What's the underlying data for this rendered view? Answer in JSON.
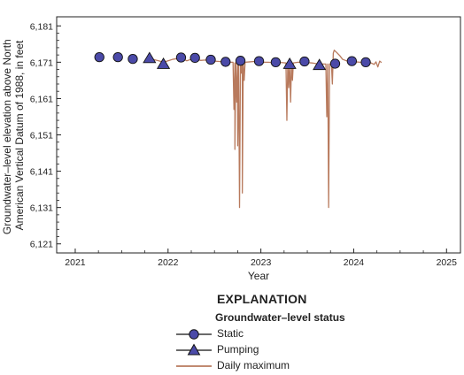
{
  "chart_data": {
    "type": "line",
    "xlabel": "Year",
    "ylabel_lines": [
      "Groundwater–level elevation above North",
      "American Vertical Datum of 1988, in feet"
    ],
    "xlim": [
      2020.8,
      2025.15
    ],
    "ylim": [
      6118.5,
      6183.5
    ],
    "x_ticks": [
      2021,
      2022,
      2023,
      2024,
      2025
    ],
    "x_tick_labels": [
      "2021",
      "2022",
      "2023",
      "2024",
      "2025"
    ],
    "y_ticks": [
      6121,
      6131,
      6141,
      6151,
      6161,
      6171,
      6181
    ],
    "y_tick_labels": [
      "6,121",
      "6,131",
      "6,141",
      "6,151",
      "6,161",
      "6,171",
      "6,181"
    ],
    "grid": false,
    "series": [
      {
        "name": "Static",
        "type": "scatter",
        "marker": "circle",
        "color": "#4b4aa8",
        "points": [
          [
            2021.26,
            6172.4
          ],
          [
            2021.46,
            6172.4
          ],
          [
            2021.62,
            6171.9
          ],
          [
            2022.14,
            6172.3
          ],
          [
            2022.29,
            6172.2
          ],
          [
            2022.46,
            6171.7
          ],
          [
            2022.62,
            6171.1
          ],
          [
            2022.78,
            6171.4
          ],
          [
            2022.98,
            6171.3
          ],
          [
            2023.16,
            6171.0
          ],
          [
            2023.47,
            6171.2
          ],
          [
            2023.8,
            6170.6
          ],
          [
            2023.98,
            6171.3
          ],
          [
            2024.13,
            6171.0
          ]
        ]
      },
      {
        "name": "Pumping",
        "type": "scatter",
        "marker": "triangle",
        "color": "#4b4aa8",
        "points": [
          [
            2021.8,
            6172.1
          ],
          [
            2021.95,
            6170.5
          ],
          [
            2023.31,
            6170.5
          ],
          [
            2023.63,
            6170.2
          ]
        ]
      },
      {
        "name": "Daily maximum",
        "type": "line",
        "color": "#b87a5d",
        "points": [
          [
            2021.8,
            6171.9
          ],
          [
            2021.85,
            6171.7
          ],
          [
            2021.9,
            6171.4
          ],
          [
            2021.95,
            6171.0
          ],
          [
            2022.0,
            6171.4
          ],
          [
            2022.05,
            6171.8
          ],
          [
            2022.1,
            6172.0
          ],
          [
            2022.15,
            6172.1
          ],
          [
            2022.2,
            6171.4
          ],
          [
            2022.25,
            6171.8
          ],
          [
            2022.3,
            6171.9
          ],
          [
            2022.35,
            6171.5
          ],
          [
            2022.4,
            6171.6
          ],
          [
            2022.45,
            6171.5
          ],
          [
            2022.5,
            6171.3
          ],
          [
            2022.55,
            6171.2
          ],
          [
            2022.6,
            6171.1
          ],
          [
            2022.65,
            6171.0
          ],
          [
            2022.69,
            6171.0
          ],
          [
            2022.7,
            6171.0
          ],
          [
            2022.71,
            6158.0
          ],
          [
            2022.72,
            6170.8
          ],
          [
            2022.72,
            6147.0
          ],
          [
            2022.73,
            6170.8
          ],
          [
            2022.74,
            6160.0
          ],
          [
            2022.75,
            6170.8
          ],
          [
            2022.75,
            6148.0
          ],
          [
            2022.76,
            6170.9
          ],
          [
            2022.77,
            6131.0
          ],
          [
            2022.78,
            6170.9
          ],
          [
            2022.79,
            6168.0
          ],
          [
            2022.8,
            6171.0
          ],
          [
            2022.8,
            6135.0
          ],
          [
            2022.81,
            6171.0
          ],
          [
            2022.82,
            6166.0
          ],
          [
            2022.83,
            6171.0
          ],
          [
            2022.88,
            6171.1
          ],
          [
            2022.93,
            6171.2
          ],
          [
            2022.98,
            6171.1
          ],
          [
            2023.03,
            6171.0
          ],
          [
            2023.08,
            6171.0
          ],
          [
            2023.13,
            6170.9
          ],
          [
            2023.18,
            6170.9
          ],
          [
            2023.23,
            6170.9
          ],
          [
            2023.27,
            6170.8
          ],
          [
            2023.28,
            6155.0
          ],
          [
            2023.29,
            6170.8
          ],
          [
            2023.3,
            6164.0
          ],
          [
            2023.31,
            6170.8
          ],
          [
            2023.32,
            6160.0
          ],
          [
            2023.33,
            6170.8
          ],
          [
            2023.34,
            6166.0
          ],
          [
            2023.35,
            6170.8
          ],
          [
            2023.4,
            6171.0
          ],
          [
            2023.45,
            6171.0
          ],
          [
            2023.5,
            6170.9
          ],
          [
            2023.55,
            6170.8
          ],
          [
            2023.6,
            6170.6
          ],
          [
            2023.65,
            6170.5
          ],
          [
            2023.7,
            6170.5
          ],
          [
            2023.71,
            6156.0
          ],
          [
            2023.72,
            6170.5
          ],
          [
            2023.73,
            6131.0
          ],
          [
            2023.74,
            6170.5
          ],
          [
            2023.76,
            6170.5
          ],
          [
            2023.77,
            6165.0
          ],
          [
            2023.78,
            6173.5
          ],
          [
            2023.79,
            6174.3
          ],
          [
            2023.82,
            6173.6
          ],
          [
            2023.85,
            6172.8
          ],
          [
            2023.88,
            6171.8
          ],
          [
            2023.92,
            6171.4
          ],
          [
            2023.97,
            6171.2
          ],
          [
            2024.02,
            6171.1
          ],
          [
            2024.07,
            6171.0
          ],
          [
            2024.12,
            6170.9
          ],
          [
            2024.17,
            6171.0
          ],
          [
            2024.22,
            6170.4
          ],
          [
            2024.24,
            6171.1
          ],
          [
            2024.26,
            6169.7
          ],
          [
            2024.28,
            6171.3
          ],
          [
            2024.3,
            6170.9
          ]
        ]
      }
    ]
  },
  "legend": {
    "heading": "EXPLANATION",
    "subheading": "Groundwater–level status",
    "items": [
      {
        "label": "Static",
        "kind": "circle"
      },
      {
        "label": "Pumping",
        "kind": "triangle"
      },
      {
        "label": "Daily maximum",
        "kind": "line"
      }
    ]
  }
}
